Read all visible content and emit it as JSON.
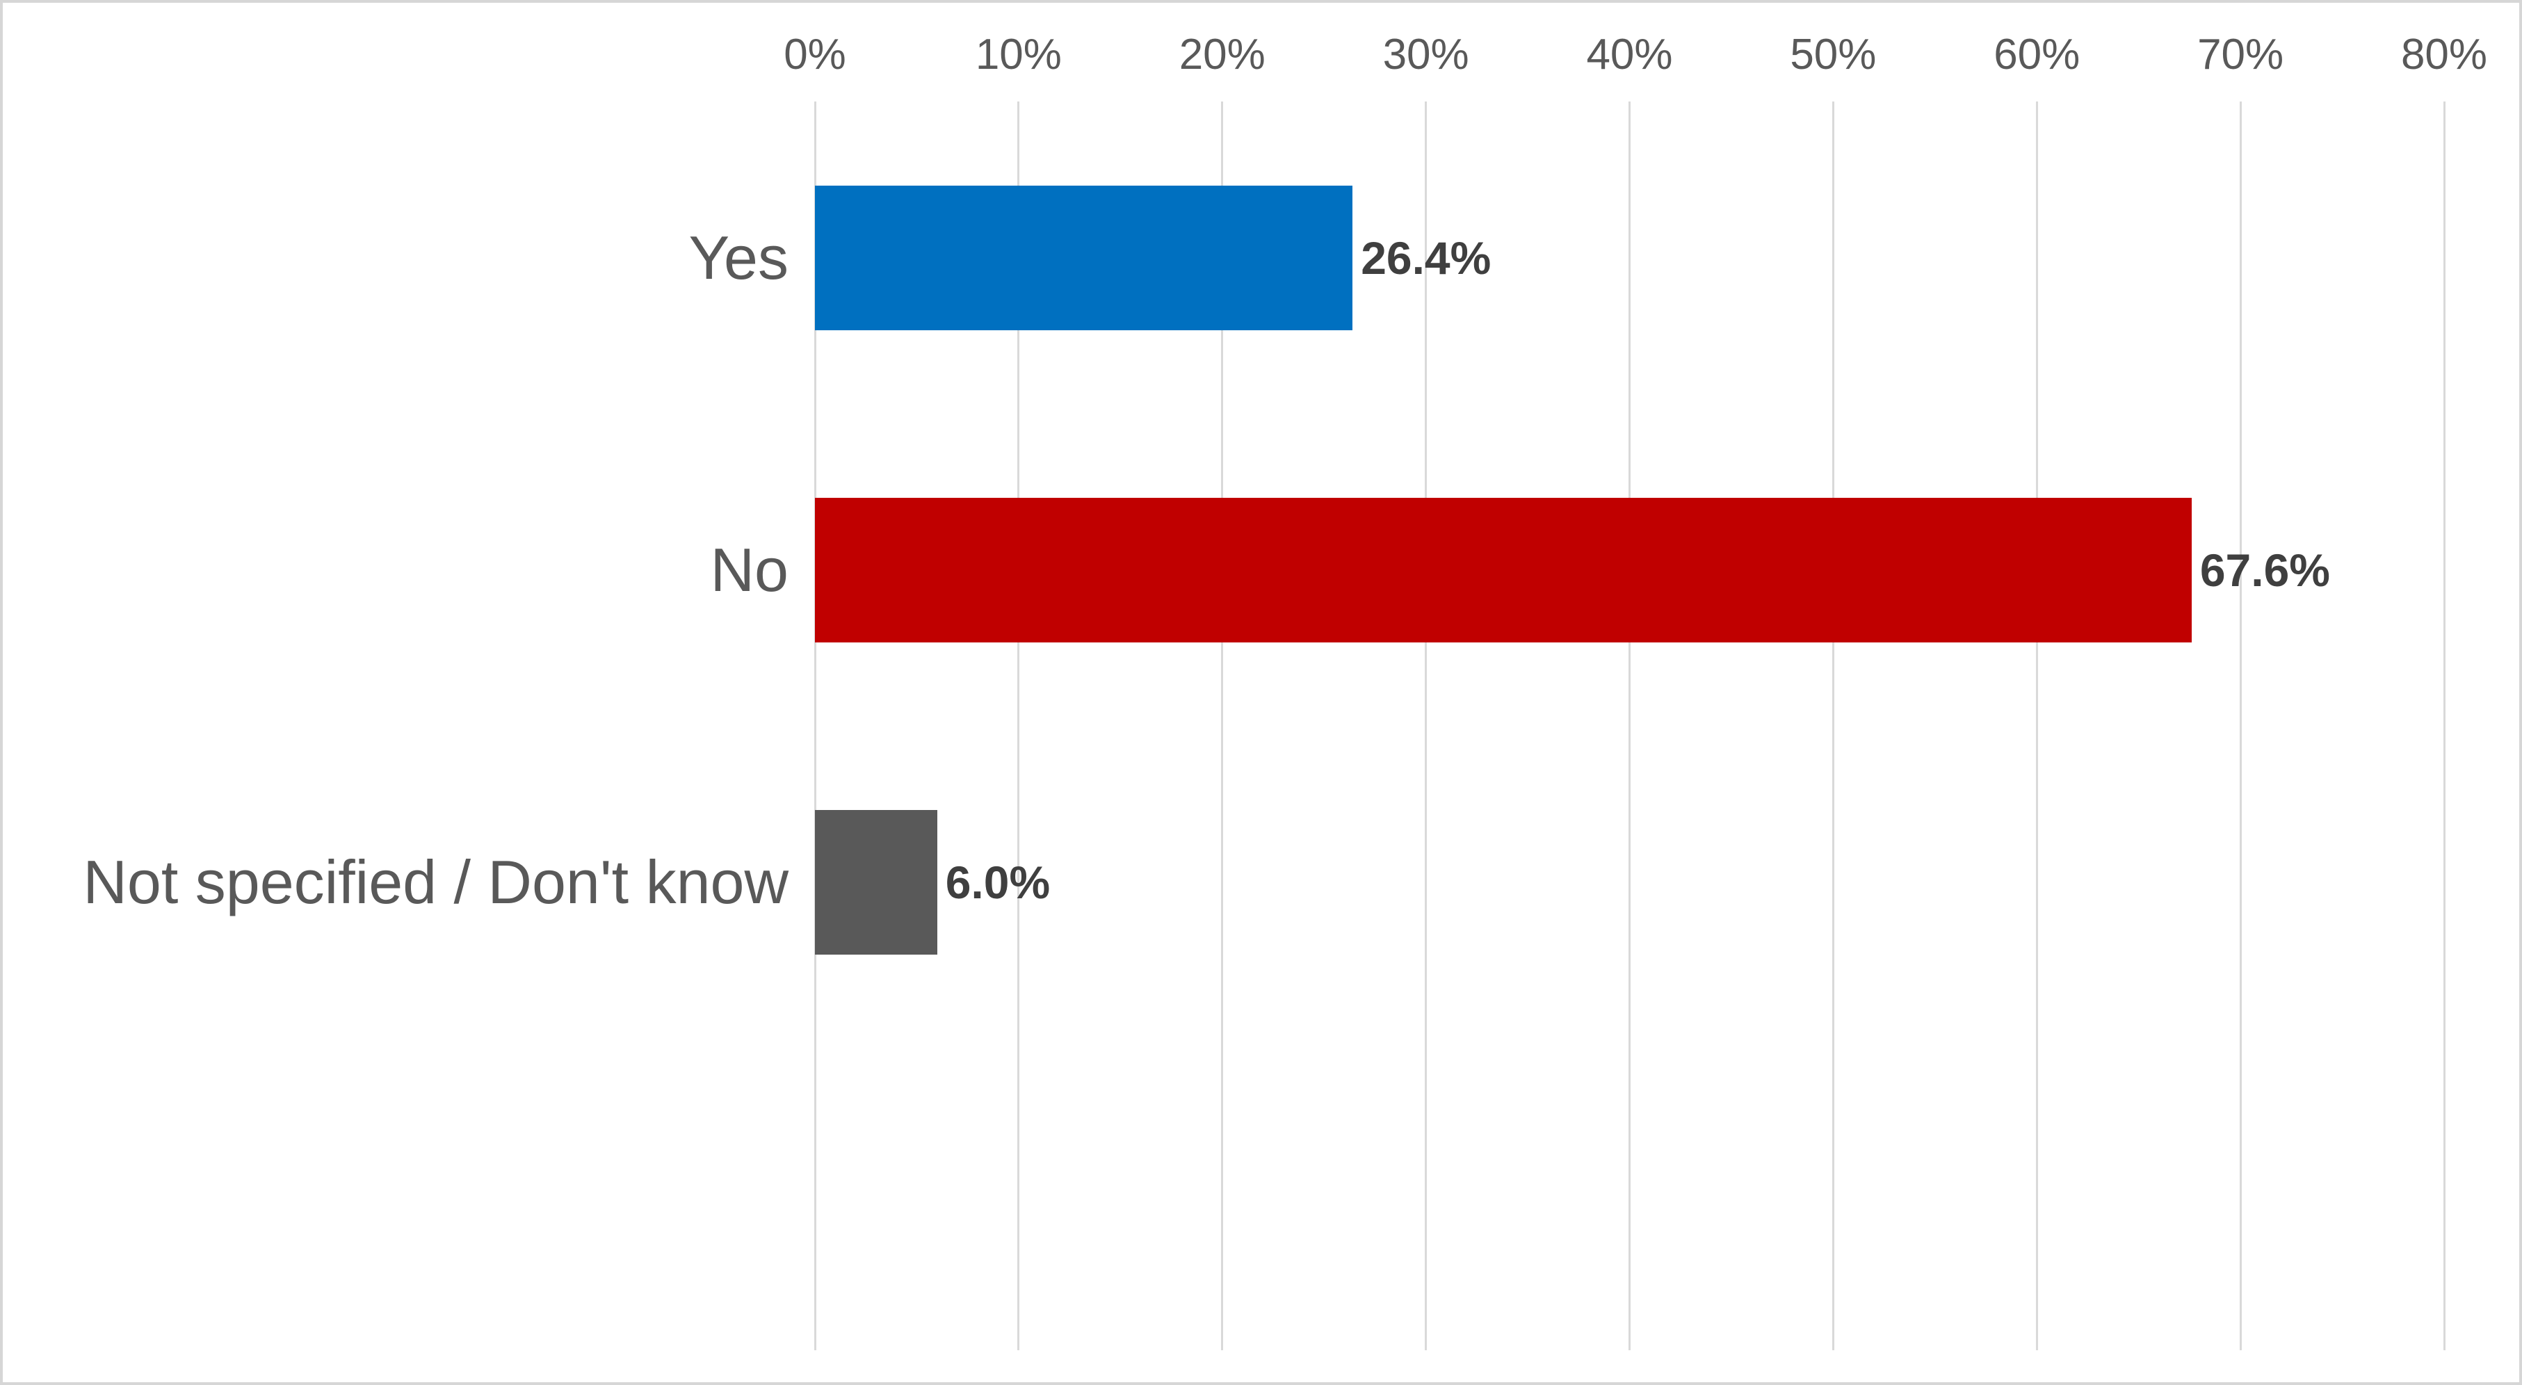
{
  "chart_data": {
    "type": "bar",
    "orientation": "horizontal",
    "title": "",
    "xlabel": "",
    "ylabel": "",
    "categories": [
      "Yes",
      "No",
      "Not specified / Don't know"
    ],
    "values": [
      26.4,
      67.6,
      6.0
    ],
    "value_labels": [
      "26.4%",
      "67.6%",
      "6.0%"
    ],
    "bar_colors": [
      "#0070C0",
      "#C00000",
      "#595959"
    ],
    "xlim": [
      0,
      80
    ],
    "x_tick_step": 10,
    "x_tick_labels": [
      "0%",
      "10%",
      "20%",
      "30%",
      "40%",
      "50%",
      "60%",
      "70%",
      "80%"
    ],
    "grid": "vertical-only",
    "legend_position": "none",
    "colors": {
      "gridline": "#d9d9d9",
      "tick_text": "#595959",
      "category_text": "#595959",
      "value_text": "#3f3f3f",
      "background": "#ffffff",
      "frame_border": "#d6d6d6"
    }
  }
}
